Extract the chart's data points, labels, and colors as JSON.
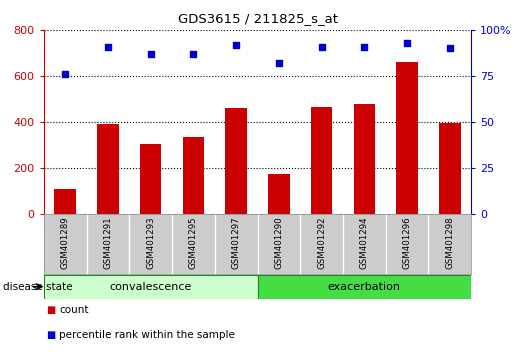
{
  "title": "GDS3615 / 211825_s_at",
  "samples": [
    "GSM401289",
    "GSM401291",
    "GSM401293",
    "GSM401295",
    "GSM401297",
    "GSM401290",
    "GSM401292",
    "GSM401294",
    "GSM401296",
    "GSM401298"
  ],
  "counts": [
    110,
    390,
    305,
    335,
    460,
    175,
    465,
    480,
    660,
    395
  ],
  "percentiles": [
    76,
    91,
    87,
    87,
    92,
    82,
    91,
    91,
    93,
    90
  ],
  "count_color": "#cc0000",
  "percentile_color": "#0000cc",
  "bar_width": 0.5,
  "ylim_left": [
    0,
    800
  ],
  "ylim_right": [
    0,
    100
  ],
  "yticks_left": [
    0,
    200,
    400,
    600,
    800
  ],
  "yticks_right": [
    0,
    25,
    50,
    75,
    100
  ],
  "groups": [
    {
      "label": "convalescence",
      "start": 0,
      "end": 5
    },
    {
      "label": "exacerbation",
      "start": 5,
      "end": 10
    }
  ],
  "convalescence_color": "#ccffcc",
  "exacerbation_color": "#44dd44",
  "group_border_color": "#228822",
  "disease_state_label": "disease state",
  "tick_area_color": "#cccccc",
  "grid_color": "#000000",
  "background_color": "#ffffff"
}
